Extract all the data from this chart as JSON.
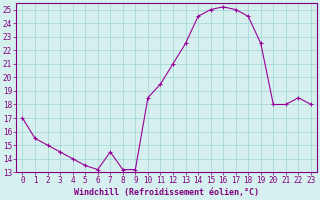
{
  "x": [
    0,
    1,
    2,
    3,
    4,
    5,
    6,
    7,
    8,
    9,
    10,
    11,
    12,
    13,
    14,
    15,
    16,
    17,
    18,
    19,
    20,
    21,
    22,
    23
  ],
  "y": [
    17,
    15.5,
    15,
    14.5,
    14,
    13.5,
    13.2,
    14.5,
    13.2,
    13.2,
    18.5,
    19.5,
    21,
    22.5,
    24.5,
    25,
    25.2,
    25,
    24.5,
    22.5,
    18,
    18,
    18.5,
    18
  ],
  "line_color": "#990099",
  "marker": "+",
  "bg_color": "#d6f0ef",
  "grid_color": "#a8d8d8",
  "xlabel": "Windchill (Refroidissement éolien,°C)",
  "xlabel_fontsize": 6.0,
  "tick_fontsize": 5.5,
  "ylim": [
    13,
    25.5
  ],
  "yticks": [
    13,
    14,
    15,
    16,
    17,
    18,
    19,
    20,
    21,
    22,
    23,
    24,
    25
  ],
  "xticks": [
    0,
    1,
    2,
    3,
    4,
    5,
    6,
    7,
    8,
    9,
    10,
    11,
    12,
    13,
    14,
    15,
    16,
    17,
    18,
    19,
    20,
    21,
    22,
    23
  ],
  "xlim": [
    -0.5,
    23.5
  ],
  "spine_color": "#800080",
  "tick_color": "#800080",
  "label_color": "#800080"
}
